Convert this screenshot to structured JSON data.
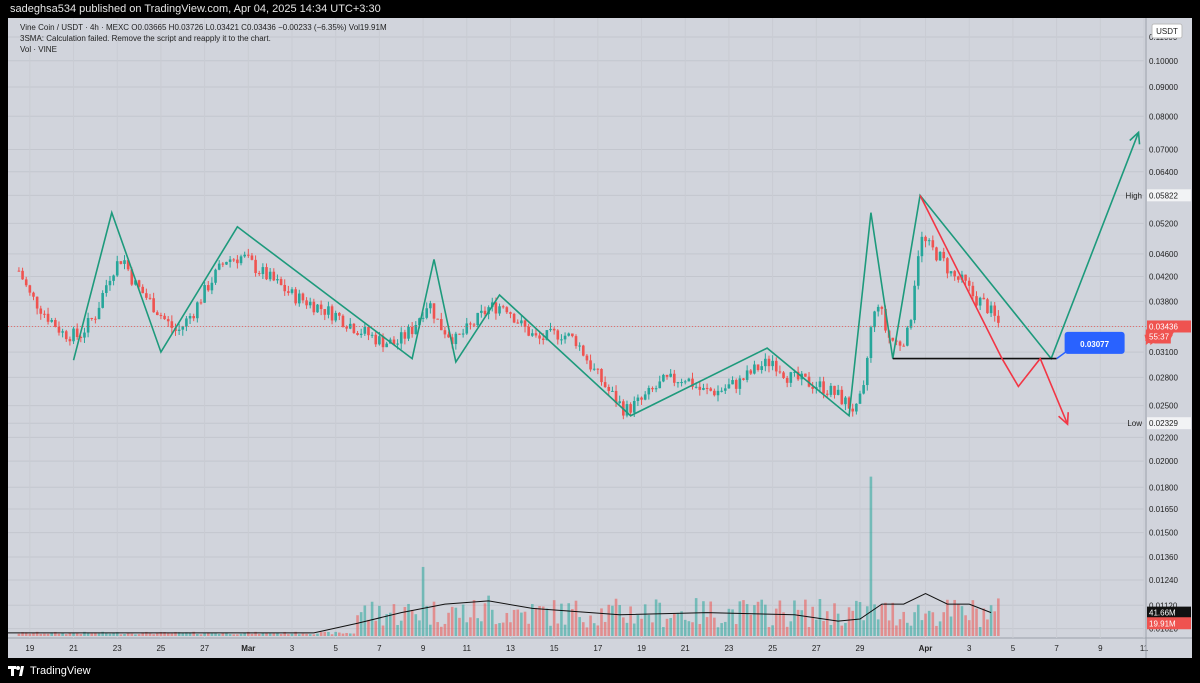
{
  "header": {
    "publisher_line": "sadeghsa534 published on TradingView.com, Apr 04, 2025 14:34 UTC+3:30"
  },
  "legend": {
    "symbol_line": "Vine Coin / USDT · 4h · MEXC  O0.03665  H0.03726  L0.03421  C0.03436  −0.00233 (−6.35%)  Vol19.91M",
    "indicator_line": "3SMA: Calculation failed. Remove the script and reapply it to the chart.",
    "volume_line": "Vol · VINE"
  },
  "price_axis": {
    "currency": "USDT",
    "ticks": [
      "0.11000",
      "0.10000",
      "0.09000",
      "0.08000",
      "0.07000",
      "0.06400",
      "0.05822",
      "0.05200",
      "0.04600",
      "0.04200",
      "0.03800",
      "0.03436",
      "0.03100",
      "0.02800",
      "0.02500",
      "0.02329",
      "0.02200",
      "0.02000",
      "0.01800",
      "0.01650",
      "0.01500",
      "0.01360",
      "0.01240",
      "0.01120",
      "0.01020"
    ],
    "high_label": "High",
    "high_value": "0.05822",
    "low_label": "Low",
    "low_value": "0.02329",
    "last_price": "0.03436",
    "countdown": "55:37",
    "volume_sma": "41.66M",
    "volume_last": "19.91M"
  },
  "time_axis": {
    "labels": [
      "19",
      "21",
      "23",
      "25",
      "27",
      "Mar",
      "3",
      "5",
      "7",
      "9",
      "11",
      "13",
      "15",
      "17",
      "19",
      "21",
      "23",
      "25",
      "27",
      "29",
      "Apr",
      "3",
      "5",
      "7",
      "9",
      "11"
    ]
  },
  "annotation": {
    "target_price": "0.03077"
  },
  "colors": {
    "background": "#d1d4dc",
    "up": "#26a69a",
    "down": "#ef5350",
    "pattern_line": "#1d9a7c",
    "bear_line": "#f23645",
    "callout": "#2962ff"
  },
  "footer": {
    "brand": "TradingView"
  },
  "chart_data": {
    "type": "candlestick",
    "symbol": "Vine Coin / USDT",
    "interval": "4h",
    "exchange": "MEXC",
    "x_range": [
      "2025-02-18",
      "2025-04-11"
    ],
    "y_range": [
      0.0099,
      0.115
    ],
    "y_scale": "log",
    "last": {
      "open": 0.03665,
      "high": 0.03726,
      "low": 0.03421,
      "close": 0.03436,
      "change": -0.00233,
      "change_pct": -6.35,
      "volume": "19.91M"
    },
    "session_high": 0.05822,
    "session_low": 0.02329,
    "price_path": [
      [
        "2025-02-18T12:00",
        0.043
      ],
      [
        "2025-02-19T00:00",
        0.039
      ],
      [
        "2025-02-19T18:00",
        0.036
      ],
      [
        "2025-02-20T12:00",
        0.0335
      ],
      [
        "2025-02-21T06:00",
        0.033
      ],
      [
        "2025-02-22T00:00",
        0.036
      ],
      [
        "2025-02-22T18:00",
        0.043
      ],
      [
        "2025-02-23T06:00",
        0.0455
      ],
      [
        "2025-02-23T18:00",
        0.041
      ],
      [
        "2025-02-24T12:00",
        0.038
      ],
      [
        "2025-02-25T06:00",
        0.035
      ],
      [
        "2025-02-25T18:00",
        0.0335
      ],
      [
        "2025-02-26T12:00",
        0.0365
      ],
      [
        "2025-02-27T06:00",
        0.041
      ],
      [
        "2025-02-28T00:00",
        0.045
      ],
      [
        "2025-02-28T18:00",
        0.0455
      ],
      [
        "2025-03-01T12:00",
        0.043
      ],
      [
        "2025-03-02T06:00",
        0.041
      ],
      [
        "2025-03-03T00:00",
        0.039
      ],
      [
        "2025-03-04T00:00",
        0.0375
      ],
      [
        "2025-03-05T00:00",
        0.036
      ],
      [
        "2025-03-06T00:00",
        0.034
      ],
      [
        "2025-03-07T00:00",
        0.0325
      ],
      [
        "2025-03-07T18:00",
        0.032
      ],
      [
        "2025-03-08T12:00",
        0.034
      ],
      [
        "2025-03-09T06:00",
        0.038
      ],
      [
        "2025-03-09T18:00",
        0.0345
      ],
      [
        "2025-03-10T12:00",
        0.0325
      ],
      [
        "2025-03-11T06:00",
        0.0345
      ],
      [
        "2025-03-12T00:00",
        0.037
      ],
      [
        "2025-03-12T18:00",
        0.0375
      ],
      [
        "2025-03-13T12:00",
        0.0345
      ],
      [
        "2025-03-14T06:00",
        0.0325
      ],
      [
        "2025-03-15T06:00",
        0.0335
      ],
      [
        "2025-03-16T00:00",
        0.0325
      ],
      [
        "2025-03-16T18:00",
        0.029
      ],
      [
        "2025-03-17T12:00",
        0.0265
      ],
      [
        "2025-03-18T06:00",
        0.0245
      ],
      [
        "2025-03-19T00:00",
        0.0255
      ],
      [
        "2025-03-20T00:00",
        0.0275
      ],
      [
        "2025-03-21T00:00",
        0.028
      ],
      [
        "2025-03-21T18:00",
        0.0265
      ],
      [
        "2025-03-22T12:00",
        0.0265
      ],
      [
        "2025-03-23T12:00",
        0.0275
      ],
      [
        "2025-03-24T06:00",
        0.029
      ],
      [
        "2025-03-25T00:00",
        0.03
      ],
      [
        "2025-03-25T18:00",
        0.028
      ],
      [
        "2025-03-26T12:00",
        0.0275
      ],
      [
        "2025-03-27T06:00",
        0.027
      ],
      [
        "2025-03-28T00:00",
        0.026
      ],
      [
        "2025-03-28T12:00",
        0.025
      ],
      [
        "2025-03-28T20:00",
        0.0245
      ],
      [
        "2025-03-29T04:00",
        0.0265
      ],
      [
        "2025-03-29T12:00",
        0.034
      ],
      [
        "2025-03-29T20:00",
        0.038
      ],
      [
        "2025-03-30T06:00",
        0.033
      ],
      [
        "2025-03-30T18:00",
        0.032
      ],
      [
        "2025-03-31T06:00",
        0.0335
      ],
      [
        "2025-03-31T18:00",
        0.049
      ],
      [
        "2025-04-01T06:00",
        0.047
      ],
      [
        "2025-04-01T18:00",
        0.045
      ],
      [
        "2025-04-02T06:00",
        0.042
      ],
      [
        "2025-04-02T18:00",
        0.041
      ],
      [
        "2025-04-03T06:00",
        0.0385
      ],
      [
        "2025-04-03T18:00",
        0.0375
      ],
      [
        "2025-04-04T10:00",
        0.03436
      ]
    ],
    "volume_spikes_m": [
      [
        "2025-03-09T00:00",
        65
      ],
      [
        "2025-03-12T00:00",
        38
      ],
      [
        "2025-03-29T12:00",
        150
      ],
      [
        "2025-03-30T06:00",
        58
      ],
      [
        "2025-04-01T06:00",
        82
      ],
      [
        "2025-04-02T06:00",
        60
      ]
    ],
    "volume_sma_path": [
      [
        "2025-02-18T00:00",
        3
      ],
      [
        "2025-03-04T00:00",
        3
      ],
      [
        "2025-03-06T00:00",
        12
      ],
      [
        "2025-03-08T00:00",
        22
      ],
      [
        "2025-03-10T00:00",
        30
      ],
      [
        "2025-03-12T00:00",
        33
      ],
      [
        "2025-03-14T00:00",
        26
      ],
      [
        "2025-03-18T00:00",
        20
      ],
      [
        "2025-03-22T00:00",
        22
      ],
      [
        "2025-03-26T00:00",
        20
      ],
      [
        "2025-03-28T00:00",
        14
      ],
      [
        "2025-03-29T00:00",
        16
      ],
      [
        "2025-03-30T00:00",
        30
      ],
      [
        "2025-03-31T00:00",
        30
      ],
      [
        "2025-04-01T00:00",
        40
      ],
      [
        "2025-04-02T00:00",
        30
      ],
      [
        "2025-04-03T00:00",
        30
      ],
      [
        "2025-04-04T00:00",
        22
      ]
    ],
    "drawings": {
      "pattern_zigzag": [
        [
          "2025-02-21T00:00",
          0.03
        ],
        [
          "2025-02-22T18:00",
          0.0543
        ],
        [
          "2025-02-25T00:00",
          0.031
        ],
        [
          "2025-02-28T12:00",
          0.0513
        ],
        [
          "2025-03-08T12:00",
          0.0302
        ],
        [
          "2025-03-09T12:00",
          0.045
        ],
        [
          "2025-03-10T12:00",
          0.0298
        ],
        [
          "2025-03-12T12:00",
          0.039
        ],
        [
          "2025-03-18T12:00",
          0.024
        ],
        [
          "2025-03-24T18:00",
          0.0315
        ],
        [
          "2025-03-28T12:00",
          0.024
        ],
        [
          "2025-03-29T12:00",
          0.0543
        ],
        [
          "2025-03-30T12:00",
          0.0302
        ],
        [
          "2025-03-31T18:00",
          0.0582
        ],
        [
          "2025-04-06T18:00",
          0.0302
        ],
        [
          "2025-04-10T18:00",
          0.075
        ]
      ],
      "support_line": {
        "from": "2025-03-30T12:00",
        "to": "2025-04-07T00:00",
        "price": 0.0302
      },
      "bear_projection": [
        [
          "2025-03-31T18:00",
          0.0582
        ],
        [
          "2025-04-04T12:00",
          0.0302
        ],
        [
          "2025-04-05T06:00",
          0.027
        ],
        [
          "2025-04-06T06:00",
          0.0302
        ],
        [
          "2025-04-07T12:00",
          0.0232
        ]
      ],
      "target_callout_price": 0.03077
    }
  }
}
